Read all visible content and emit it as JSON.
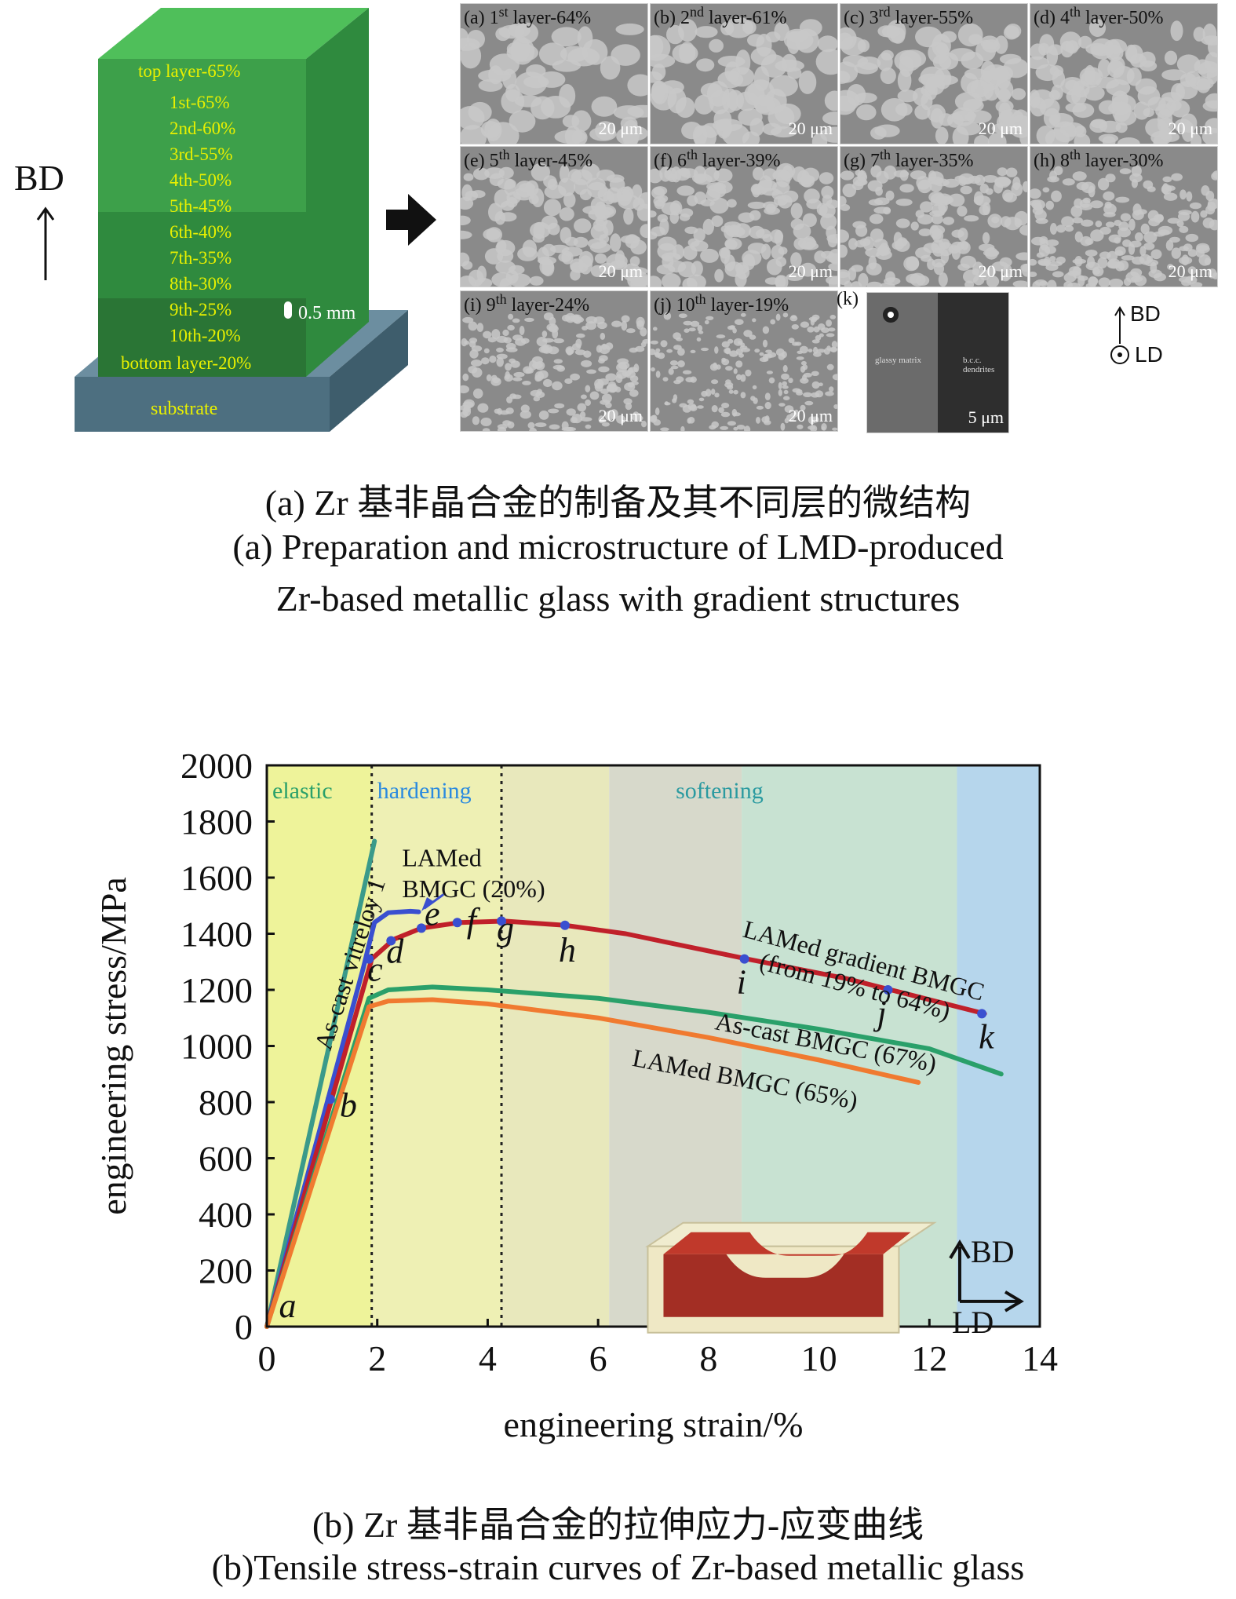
{
  "part_a": {
    "bd_label": "BD",
    "block_layers": [
      "top layer-65%",
      "1st-65%",
      "2nd-60%",
      "3rd-55%",
      "4th-50%",
      "5th-45%",
      "6th-40%",
      "7th-35%",
      "8th-30%",
      "9th-25%",
      "10th-20%",
      "bottom layer-20%"
    ],
    "thickness_label": "0.5 mm",
    "substrate_label": "substrate",
    "micrographs": [
      {
        "tag": "(a)",
        "ord": "1",
        "sup": "st",
        "suffix": "layer-64%",
        "scale": "20 μm"
      },
      {
        "tag": "(b)",
        "ord": "2",
        "sup": "nd",
        "suffix": "layer-61%",
        "scale": "20 μm"
      },
      {
        "tag": "(c)",
        "ord": "3",
        "sup": "rd",
        "suffix": "layer-55%",
        "scale": "20 μm"
      },
      {
        "tag": "(d)",
        "ord": "4",
        "sup": "th",
        "suffix": "layer-50%",
        "scale": "20 μm"
      },
      {
        "tag": "(e)",
        "ord": "5",
        "sup": "th",
        "suffix": "layer-45%",
        "scale": "20 μm"
      },
      {
        "tag": "(f)",
        "ord": "6",
        "sup": "th",
        "suffix": "layer-39%",
        "scale": "20 μm"
      },
      {
        "tag": "(g)",
        "ord": "7",
        "sup": "th",
        "suffix": "layer-35%",
        "scale": "20 μm"
      },
      {
        "tag": "(h)",
        "ord": "8",
        "sup": "th",
        "suffix": "layer-30%",
        "scale": "20 μm"
      },
      {
        "tag": "(i)",
        "ord": "9",
        "sup": "th",
        "suffix": "layer-24%",
        "scale": "20 μm"
      },
      {
        "tag": "(j)",
        "ord": "10",
        "sup": "th",
        "suffix": "layer-19%",
        "scale": "20 μm"
      }
    ],
    "micro_k": {
      "tag": "(k)",
      "scale": "5 μm",
      "left_text": "glassy matrix",
      "right_text": "b.c.c. dendrites"
    },
    "axes_bd": "BD",
    "axes_ld": "LD",
    "caption_cn": "(a) Zr 基非晶合金的制备及其不同层的微结构",
    "caption_en_1": "(a) Preparation and microstructure of LMD-produced",
    "caption_en_2": "Zr-based metallic glass with gradient structures"
  },
  "chart_data": {
    "type": "line",
    "xlabel": "engineering strain/%",
    "ylabel": "engineering stress/MPa",
    "xlim": [
      0,
      14
    ],
    "ylim": [
      0,
      2000
    ],
    "x_ticks": [
      "0",
      "2",
      "4",
      "6",
      "8",
      "10",
      "12",
      "14"
    ],
    "y_ticks": [
      "0",
      "200",
      "400",
      "600",
      "800",
      "1000",
      "1200",
      "1400",
      "1600",
      "1800",
      "2000"
    ],
    "regions": [
      {
        "name": "elastic",
        "x": [
          0,
          1.9
        ],
        "color": "#eef2a0"
      },
      {
        "name": "hardening",
        "x": [
          1.9,
          4.25
        ],
        "color": "#eef0b0"
      },
      {
        "name": "softening",
        "x": [
          4.25,
          14
        ],
        "color": "#d8e0c8"
      }
    ],
    "region_labels": [
      "elastic",
      "hardening",
      "softening"
    ],
    "dotted_lines_x": [
      1.9,
      4.25
    ],
    "series": [
      {
        "name": "As-cast vitreloy 1",
        "color": "#3a9a8a",
        "x": [
          0,
          1.95
        ],
        "y": [
          0,
          1730
        ]
      },
      {
        "name": "LAMed BMGC (20%)",
        "color": "#3a4fd0",
        "x": [
          0,
          1.75,
          1.95,
          2.2,
          2.6,
          2.75
        ],
        "y": [
          0,
          1280,
          1440,
          1475,
          1480,
          1478
        ]
      },
      {
        "name": "LAMed gradient BMGC (from 19% to 64%)",
        "color": "#c0202a",
        "x": [
          0,
          1.9,
          2.3,
          2.8,
          3.5,
          4.3,
          5.4,
          6.5,
          8.7,
          10.5,
          11.3,
          13.0
        ],
        "y": [
          0,
          1310,
          1380,
          1420,
          1440,
          1445,
          1430,
          1400,
          1310,
          1240,
          1200,
          1115
        ]
      },
      {
        "name": "As-cast BMGC (67%)",
        "color": "#2aa06a",
        "x": [
          0,
          1.85,
          2.2,
          3.0,
          4.0,
          6.0,
          8.0,
          10.0,
          12.0,
          13.3
        ],
        "y": [
          0,
          1170,
          1200,
          1210,
          1200,
          1170,
          1120,
          1060,
          990,
          900
        ]
      },
      {
        "name": "LAMed BMGC (65%)",
        "color": "#f07a30",
        "x": [
          0,
          1.85,
          2.2,
          3.0,
          4.0,
          6.0,
          8.0,
          10.0,
          11.8
        ],
        "y": [
          0,
          1140,
          1160,
          1165,
          1150,
          1100,
          1030,
          950,
          870
        ]
      }
    ],
    "points": [
      {
        "label": "a",
        "x": 0.05,
        "y": 0
      },
      {
        "label": "b",
        "x": 1.15,
        "y": 810
      },
      {
        "label": "c",
        "x": 1.85,
        "y": 1310
      },
      {
        "label": "d",
        "x": 2.25,
        "y": 1375
      },
      {
        "label": "e",
        "x": 2.8,
        "y": 1420
      },
      {
        "label": "f",
        "x": 3.45,
        "y": 1440
      },
      {
        "label": "g",
        "x": 4.25,
        "y": 1445
      },
      {
        "label": "h",
        "x": 5.4,
        "y": 1430
      },
      {
        "label": "i",
        "x": 8.65,
        "y": 1310
      },
      {
        "label": "j",
        "x": 11.25,
        "y": 1200
      },
      {
        "label": "k",
        "x": 12.95,
        "y": 1115
      }
    ],
    "annotations": {
      "vitreloy": "As-cast vitreloy 1",
      "bmgc20_1": "LAMed",
      "bmgc20_2": "BMGC (20%)",
      "gradient_1": "LAMed gradient BMGC",
      "gradient_2": "(from 19% to 64%)",
      "ascast67": "As-cast BMGC (67%)",
      "lamed65": "LAMed BMGC (65%)",
      "inset_bd": "BD",
      "inset_ld": "LD"
    }
  },
  "part_b": {
    "caption_cn": "(b) Zr 基非晶合金的拉伸应力-应变曲线",
    "caption_en": "(b)Tensile stress-strain curves of Zr-based metallic glass"
  }
}
